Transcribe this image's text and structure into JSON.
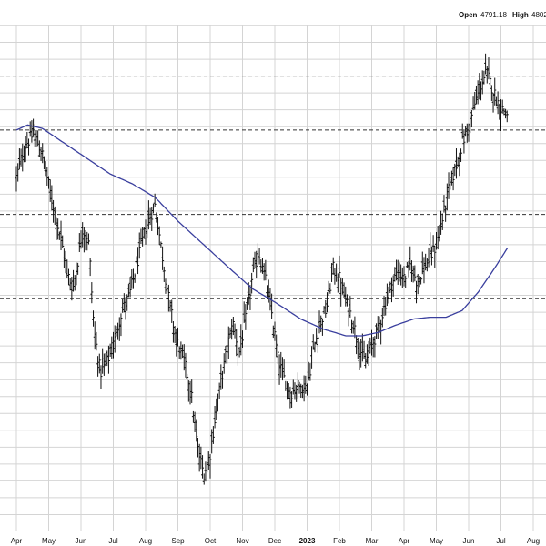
{
  "header": {
    "open_label": "Open",
    "open_value": "4791.18",
    "high_label": "High",
    "high_value": "4802"
  },
  "chart_data": {
    "type": "ohlc-bar",
    "title": "",
    "xlabel": "",
    "ylabel": "",
    "grid": true,
    "x_ticks": [
      {
        "label": "Apr",
        "bold": false
      },
      {
        "label": "May",
        "bold": false
      },
      {
        "label": "Jun",
        "bold": false
      },
      {
        "label": "Jul",
        "bold": false
      },
      {
        "label": "Aug",
        "bold": false
      },
      {
        "label": "Sep",
        "bold": false
      },
      {
        "label": "Oct",
        "bold": false
      },
      {
        "label": "Nov",
        "bold": false
      },
      {
        "label": "Dec",
        "bold": false
      },
      {
        "label": "2023",
        "bold": true
      },
      {
        "label": "Feb",
        "bold": false
      },
      {
        "label": "Mar",
        "bold": false
      },
      {
        "label": "Apr",
        "bold": false
      },
      {
        "label": "May",
        "bold": false
      },
      {
        "label": "Jun",
        "bold": false
      },
      {
        "label": "Jul",
        "bold": false
      },
      {
        "label": "Aug",
        "bold": false
      }
    ],
    "ylim": [
      3450,
      4950
    ],
    "horizontal_levels": [
      4800,
      4640,
      4390,
      4140
    ],
    "price_series": [
      {
        "x": 0.0,
        "y": 4500
      },
      {
        "x": 0.3,
        "y": 4600
      },
      {
        "x": 0.55,
        "y": 4630
      },
      {
        "x": 0.8,
        "y": 4570
      },
      {
        "x": 1.1,
        "y": 4430
      },
      {
        "x": 1.35,
        "y": 4330
      },
      {
        "x": 1.6,
        "y": 4210
      },
      {
        "x": 1.75,
        "y": 4170
      },
      {
        "x": 1.9,
        "y": 4250
      },
      {
        "x": 2.05,
        "y": 4350
      },
      {
        "x": 2.25,
        "y": 4300
      },
      {
        "x": 2.4,
        "y": 4050
      },
      {
        "x": 2.6,
        "y": 3920
      },
      {
        "x": 2.8,
        "y": 3950
      },
      {
        "x": 3.0,
        "y": 4000
      },
      {
        "x": 3.25,
        "y": 4100
      },
      {
        "x": 3.5,
        "y": 4150
      },
      {
        "x": 3.75,
        "y": 4250
      },
      {
        "x": 4.0,
        "y": 4350
      },
      {
        "x": 4.3,
        "y": 4420
      },
      {
        "x": 4.5,
        "y": 4280
      },
      {
        "x": 4.7,
        "y": 4150
      },
      {
        "x": 4.9,
        "y": 4040
      },
      {
        "x": 5.2,
        "y": 3950
      },
      {
        "x": 5.4,
        "y": 3870
      },
      {
        "x": 5.6,
        "y": 3700
      },
      {
        "x": 5.8,
        "y": 3620
      },
      {
        "x": 6.0,
        "y": 3680
      },
      {
        "x": 6.2,
        "y": 3820
      },
      {
        "x": 6.5,
        "y": 3980
      },
      {
        "x": 6.7,
        "y": 4070
      },
      {
        "x": 6.9,
        "y": 3980
      },
      {
        "x": 7.1,
        "y": 4080
      },
      {
        "x": 7.3,
        "y": 4200
      },
      {
        "x": 7.5,
        "y": 4280
      },
      {
        "x": 7.7,
        "y": 4200
      },
      {
        "x": 7.9,
        "y": 4100
      },
      {
        "x": 8.1,
        "y": 3960
      },
      {
        "x": 8.3,
        "y": 3900
      },
      {
        "x": 8.5,
        "y": 3860
      },
      {
        "x": 8.7,
        "y": 3880
      },
      {
        "x": 9.0,
        "y": 3880
      },
      {
        "x": 9.2,
        "y": 3990
      },
      {
        "x": 9.4,
        "y": 4070
      },
      {
        "x": 9.6,
        "y": 4110
      },
      {
        "x": 9.8,
        "y": 4230
      },
      {
        "x": 10.0,
        "y": 4200
      },
      {
        "x": 10.2,
        "y": 4130
      },
      {
        "x": 10.4,
        "y": 4080
      },
      {
        "x": 10.6,
        "y": 4000
      },
      {
        "x": 10.8,
        "y": 3950
      },
      {
        "x": 11.0,
        "y": 4000
      },
      {
        "x": 11.2,
        "y": 4050
      },
      {
        "x": 11.4,
        "y": 4120
      },
      {
        "x": 11.6,
        "y": 4180
      },
      {
        "x": 11.8,
        "y": 4220
      },
      {
        "x": 12.0,
        "y": 4200
      },
      {
        "x": 12.2,
        "y": 4240
      },
      {
        "x": 12.4,
        "y": 4190
      },
      {
        "x": 12.6,
        "y": 4230
      },
      {
        "x": 12.8,
        "y": 4260
      },
      {
        "x": 13.0,
        "y": 4300
      },
      {
        "x": 13.2,
        "y": 4380
      },
      {
        "x": 13.4,
        "y": 4470
      },
      {
        "x": 13.6,
        "y": 4530
      },
      {
        "x": 13.8,
        "y": 4600
      },
      {
        "x": 14.0,
        "y": 4650
      },
      {
        "x": 14.2,
        "y": 4720
      },
      {
        "x": 14.4,
        "y": 4780
      },
      {
        "x": 14.55,
        "y": 4810
      },
      {
        "x": 14.75,
        "y": 4760
      },
      {
        "x": 14.95,
        "y": 4710
      },
      {
        "x": 15.2,
        "y": 4690
      }
    ],
    "moving_average": [
      {
        "x": 0.0,
        "y": 4640
      },
      {
        "x": 0.35,
        "y": 4655
      },
      {
        "x": 0.8,
        "y": 4645
      },
      {
        "x": 1.5,
        "y": 4600
      },
      {
        "x": 2.2,
        "y": 4555
      },
      {
        "x": 2.9,
        "y": 4510
      },
      {
        "x": 3.6,
        "y": 4480
      },
      {
        "x": 4.3,
        "y": 4440
      },
      {
        "x": 5.0,
        "y": 4370
      },
      {
        "x": 5.8,
        "y": 4300
      },
      {
        "x": 6.6,
        "y": 4230
      },
      {
        "x": 7.3,
        "y": 4170
      },
      {
        "x": 8.0,
        "y": 4130
      },
      {
        "x": 8.8,
        "y": 4080
      },
      {
        "x": 9.5,
        "y": 4050
      },
      {
        "x": 10.2,
        "y": 4030
      },
      {
        "x": 10.7,
        "y": 4030
      },
      {
        "x": 11.2,
        "y": 4040
      },
      {
        "x": 11.7,
        "y": 4060
      },
      {
        "x": 12.3,
        "y": 4080
      },
      {
        "x": 12.8,
        "y": 4085
      },
      {
        "x": 13.3,
        "y": 4085
      },
      {
        "x": 13.8,
        "y": 4105
      },
      {
        "x": 14.3,
        "y": 4160
      },
      {
        "x": 14.8,
        "y": 4230
      },
      {
        "x": 15.2,
        "y": 4290
      }
    ]
  }
}
